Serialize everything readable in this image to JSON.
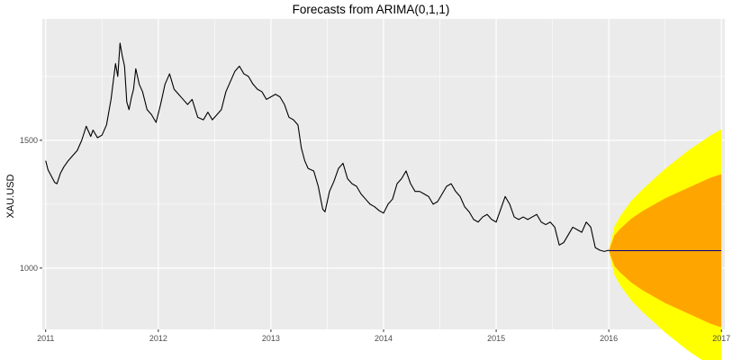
{
  "chart_data": {
    "type": "line",
    "title": "Forecasts from ARIMA(0,1,1)",
    "xlabel": "",
    "ylabel": "XAU.USD",
    "xlim": [
      2010.97,
      2017.03
    ],
    "ylim": [
      760,
      1975
    ],
    "x_ticks": [
      2011,
      2012,
      2013,
      2014,
      2015,
      2016,
      2017
    ],
    "y_ticks": [
      1000,
      1500
    ],
    "grid": true,
    "legend": "none",
    "colors": {
      "panel": "#ebebeb",
      "grid_major": "#ffffff",
      "line": "#000000",
      "band_95": "#ffff00",
      "band_80": "#ffa500",
      "forecast_line": "#000080"
    },
    "series": [
      {
        "kind": "observed",
        "x": [
          2011.0,
          2011.02,
          2011.05,
          2011.08,
          2011.1,
          2011.13,
          2011.16,
          2011.2,
          2011.24,
          2011.28,
          2011.32,
          2011.36,
          2011.4,
          2011.42,
          2011.46,
          2011.5,
          2011.54,
          2011.58,
          2011.62,
          2011.64,
          2011.66,
          2011.68,
          2011.7,
          2011.72,
          2011.74,
          2011.76,
          2011.78,
          2011.8,
          2011.83,
          2011.86,
          2011.9,
          2011.94,
          2011.98,
          2012.02,
          2012.06,
          2012.1,
          2012.14,
          2012.18,
          2012.22,
          2012.26,
          2012.3,
          2012.35,
          2012.4,
          2012.44,
          2012.48,
          2012.52,
          2012.56,
          2012.6,
          2012.64,
          2012.68,
          2012.72,
          2012.76,
          2012.8,
          2012.84,
          2012.88,
          2012.92,
          2012.96,
          2013.0,
          2013.04,
          2013.08,
          2013.12,
          2013.16,
          2013.2,
          2013.24,
          2013.27,
          2013.3,
          2013.33,
          2013.38,
          2013.42,
          2013.46,
          2013.48,
          2013.52,
          2013.56,
          2013.6,
          2013.64,
          2013.68,
          2013.72,
          2013.76,
          2013.8,
          2013.84,
          2013.88,
          2013.92,
          2013.96,
          2014.0,
          2014.04,
          2014.08,
          2014.12,
          2014.16,
          2014.2,
          2014.24,
          2014.28,
          2014.32,
          2014.36,
          2014.4,
          2014.44,
          2014.48,
          2014.52,
          2014.56,
          2014.6,
          2014.64,
          2014.68,
          2014.72,
          2014.76,
          2014.8,
          2014.84,
          2014.88,
          2014.92,
          2014.96,
          2015.0,
          2015.04,
          2015.08,
          2015.12,
          2015.16,
          2015.2,
          2015.24,
          2015.28,
          2015.32,
          2015.36,
          2015.4,
          2015.44,
          2015.48,
          2015.52,
          2015.56,
          2015.6,
          2015.64,
          2015.68,
          2015.72,
          2015.76,
          2015.8,
          2015.84,
          2015.88,
          2015.92,
          2015.96,
          2016.0
        ],
        "values": [
          1420,
          1385,
          1360,
          1335,
          1330,
          1370,
          1395,
          1420,
          1440,
          1460,
          1500,
          1555,
          1515,
          1540,
          1510,
          1520,
          1560,
          1660,
          1800,
          1750,
          1880,
          1830,
          1790,
          1650,
          1620,
          1665,
          1700,
          1780,
          1720,
          1690,
          1620,
          1600,
          1570,
          1640,
          1720,
          1760,
          1700,
          1680,
          1660,
          1640,
          1660,
          1590,
          1580,
          1610,
          1580,
          1600,
          1620,
          1690,
          1730,
          1770,
          1790,
          1760,
          1750,
          1720,
          1700,
          1690,
          1660,
          1670,
          1680,
          1670,
          1640,
          1590,
          1580,
          1560,
          1470,
          1420,
          1390,
          1380,
          1320,
          1230,
          1220,
          1300,
          1340,
          1390,
          1410,
          1350,
          1330,
          1320,
          1290,
          1270,
          1250,
          1240,
          1225,
          1215,
          1250,
          1270,
          1330,
          1350,
          1380,
          1330,
          1300,
          1300,
          1290,
          1280,
          1250,
          1260,
          1290,
          1320,
          1330,
          1300,
          1280,
          1240,
          1220,
          1190,
          1180,
          1200,
          1210,
          1190,
          1180,
          1230,
          1280,
          1250,
          1200,
          1190,
          1200,
          1190,
          1200,
          1210,
          1180,
          1170,
          1180,
          1160,
          1090,
          1100,
          1130,
          1160,
          1150,
          1140,
          1180,
          1160,
          1080,
          1070,
          1065,
          1070
        ]
      },
      {
        "kind": "forecast",
        "x": [
          2016.0,
          2017.0
        ],
        "values": [
          1068,
          1068
        ]
      }
    ],
    "intervals": {
      "x": [
        2016.0,
        2016.05,
        2016.1,
        2016.2,
        2016.3,
        2016.4,
        2016.5,
        2016.6,
        2016.7,
        2016.8,
        2016.9,
        2017.0
      ],
      "center": 1068,
      "half_width_80": [
        0,
        60,
        85,
        125,
        155,
        180,
        205,
        225,
        245,
        265,
        285,
        300
      ],
      "half_width_95": [
        0,
        95,
        135,
        195,
        240,
        280,
        320,
        355,
        390,
        420,
        450,
        475
      ]
    }
  }
}
